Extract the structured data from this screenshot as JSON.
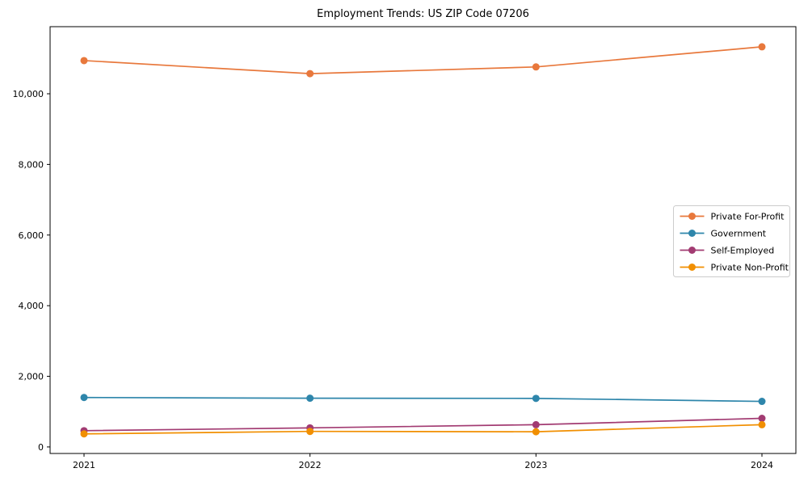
{
  "figure": {
    "background": "#ffffff",
    "spine_color": "#000000",
    "tick_label_color": "#000000",
    "legend_border_color": "#cccccc",
    "legend_background": "#ffffff"
  },
  "chart_data": {
    "type": "line",
    "title": "Employment Trends: US ZIP Code 07206",
    "xlabel": "",
    "ylabel": "",
    "x": [
      2021,
      2022,
      2023,
      2024
    ],
    "x_tick_labels": [
      "2021",
      "2022",
      "2023",
      "2024"
    ],
    "y_ticks": [
      0,
      2000,
      4000,
      6000,
      8000,
      10000
    ],
    "y_tick_labels": [
      "0",
      "2,000",
      "4,000",
      "6,000",
      "8,000",
      "10,000"
    ],
    "ylim": [
      -185,
      11900
    ],
    "grid": false,
    "legend_position": "center-right",
    "marker": "circle",
    "series": [
      {
        "name": "Private For-Profit",
        "color": "#E8783C",
        "values": [
          10940,
          10570,
          10760,
          11330
        ]
      },
      {
        "name": "Government",
        "color": "#2E86AB",
        "values": [
          1400,
          1380,
          1375,
          1290
        ]
      },
      {
        "name": "Self-Employed",
        "color": "#A23B72",
        "values": [
          460,
          540,
          630,
          810
        ]
      },
      {
        "name": "Private Non-Profit",
        "color": "#F18F01",
        "values": [
          370,
          440,
          430,
          630
        ]
      }
    ]
  }
}
